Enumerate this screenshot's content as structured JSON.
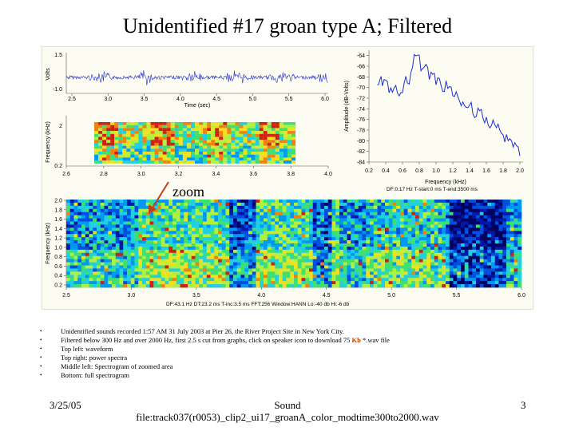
{
  "title": "Unidentified #17 groan type A; Filtered",
  "zoom_label": "zoom",
  "colors": {
    "wave": "#1f2fd0",
    "spectrum": "#1f2fd0",
    "arrow": "#c0401a",
    "kb": "#d04000",
    "panel": "#fcfcf2"
  },
  "waveform": {
    "ylabel": "Volts",
    "xlabel": "Time (sec)",
    "y_ticks": [
      "1.5",
      "-1.0"
    ],
    "x_ticks": [
      "2.5",
      "3.0",
      "3.5",
      "4.0",
      "4.5",
      "5.0",
      "5.5",
      "6.0"
    ]
  },
  "zoom_spectrogram": {
    "ylabel": "Frequency (kHz)",
    "y_ticks": [
      "2",
      "0.2"
    ],
    "x_ticks": [
      "2.6",
      "2.8",
      "3.0",
      "3.2",
      "3.4",
      "3.6",
      "3.8",
      "4.0"
    ]
  },
  "chart_data": {
    "type": "line",
    "xlabel": "Frequency (kHz)",
    "ylabel": "Amplitude (dB-Volts)",
    "xlim": [
      0.2,
      2.0
    ],
    "ylim": [
      -84,
      -63
    ],
    "x_ticks": [
      "0.2",
      "0.4",
      "0.6",
      "0.8",
      "1.0",
      "1.2",
      "1.4",
      "1.6",
      "1.8",
      "2.0"
    ],
    "y_ticks": [
      "-64",
      "-66",
      "-68",
      "-70",
      "-72",
      "-74",
      "-76",
      "-78",
      "-80",
      "-82",
      "-84"
    ],
    "x": [
      0.3,
      0.33,
      0.36,
      0.4,
      0.44,
      0.48,
      0.52,
      0.56,
      0.6,
      0.64,
      0.68,
      0.72,
      0.76,
      0.8,
      0.84,
      0.88,
      0.92,
      0.96,
      1.0,
      1.04,
      1.08,
      1.12,
      1.16,
      1.2,
      1.24,
      1.28,
      1.32,
      1.36,
      1.4,
      1.44,
      1.48,
      1.52,
      1.56,
      1.6,
      1.64,
      1.68,
      1.72,
      1.76,
      1.8,
      1.84,
      1.88,
      1.92,
      1.96,
      2.0
    ],
    "y": [
      -70,
      -68,
      -69.5,
      -68.5,
      -70.5,
      -71.5,
      -70,
      -71,
      -70.5,
      -67.5,
      -69,
      -66,
      -63.5,
      -64.5,
      -67,
      -66,
      -68.5,
      -67,
      -69.5,
      -68,
      -70.5,
      -69,
      -70,
      -72,
      -71,
      -73,
      -72,
      -74,
      -73,
      -74.5,
      -75,
      -74,
      -76,
      -75.5,
      -77,
      -76.5,
      -78,
      -77.5,
      -79.5,
      -79,
      -80,
      -81,
      -80.5,
      -82.5
    ],
    "params": "DF:0.17 Hz    T-start:0 ms    T-end:3500 ms"
  },
  "full_spectrogram": {
    "ylabel": "Frequency (kHz)",
    "y_ticks": [
      "2.0",
      "1.8",
      "1.6",
      "1.4",
      "1.2",
      "1.0",
      "0.8",
      "0.6",
      "0.4",
      "0.2"
    ],
    "x_ticks": [
      "2.5",
      "3.0",
      "3.5",
      "4.0",
      "4.5",
      "5.0",
      "5.5",
      "6.0"
    ],
    "params": "DF:43.1 Hz    DT:23.2 ms    T-inc:3.5 ms    FFT:256    Window:HANN    Lo:-40 db    Hi:-6 db"
  },
  "bullets": [
    "Unidentified sounds recorded 1:57 AM 31 July 2003 at Pier 26, the River Project Site in New York City.",
    "Top left: waveform",
    "Top right: power spectra",
    "Middle left: Spectrogram of zoomed area",
    "Bottom: full spectrogram"
  ],
  "bullet2": {
    "pre": "Filtered below 300 Hz and over 2000 Hz, first 2.5 s cut from graphs, click on speaker icon to download 75 ",
    "kb": "Kb",
    "post": " *.wav file"
  },
  "footer": {
    "date": "3/25/05",
    "sound_line1": "Sound",
    "sound_line2": "file:track037(r0053)_clip2_ui17_groanA_color_modtime300to2000.wav",
    "page": "3"
  }
}
